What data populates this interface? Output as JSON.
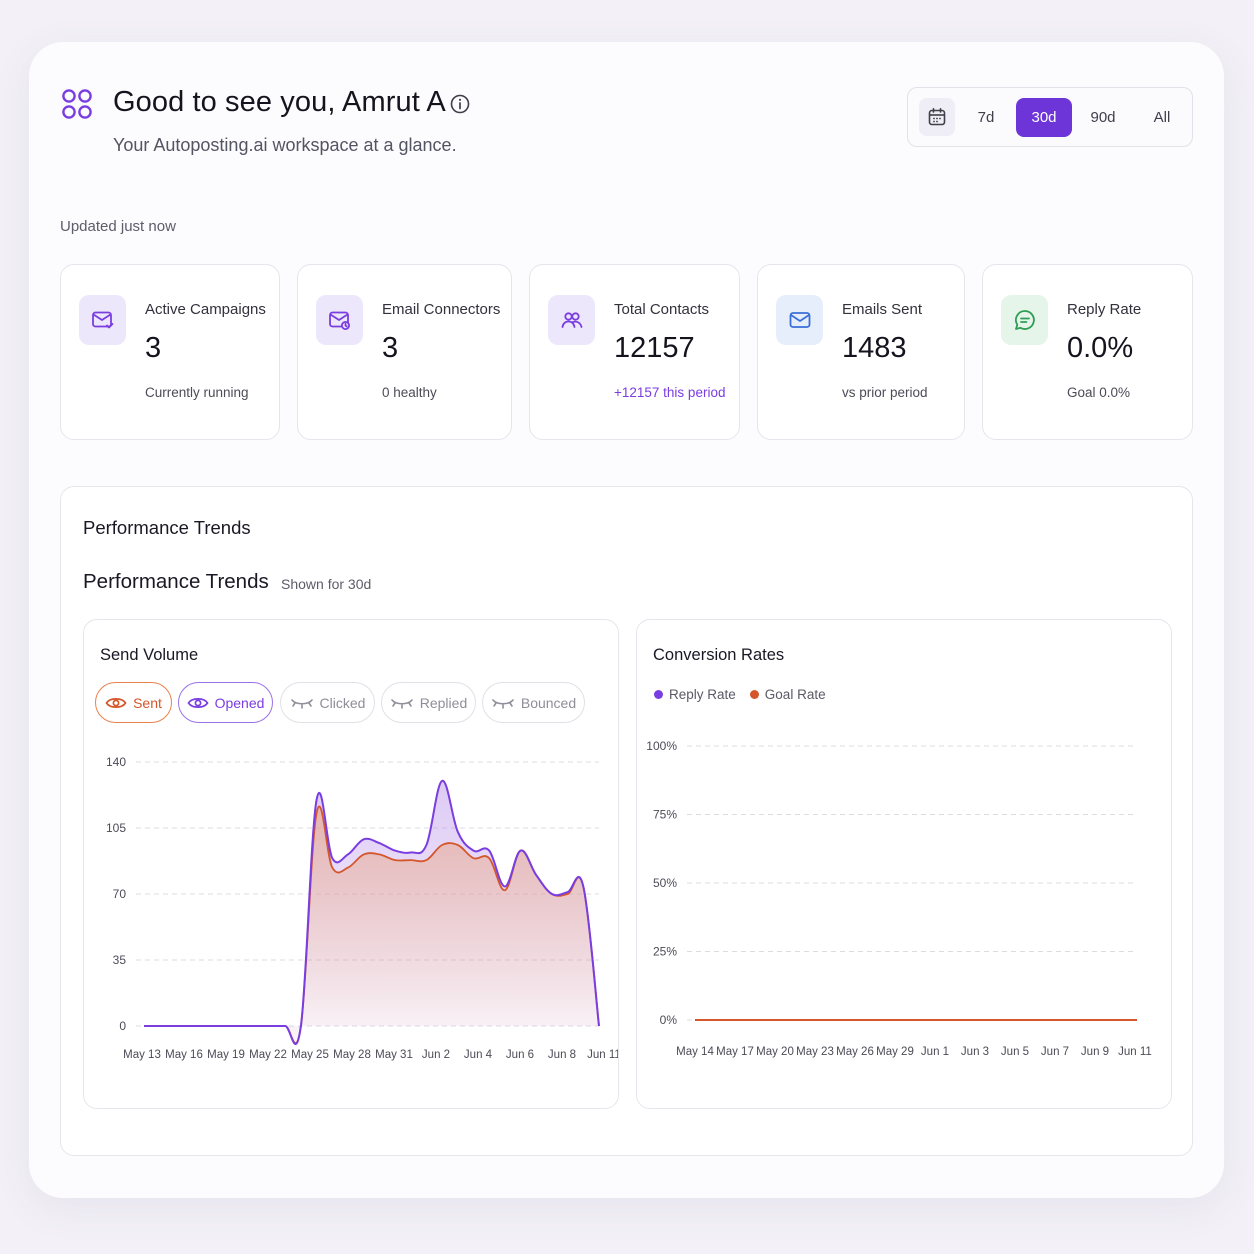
{
  "header": {
    "greeting": "Good to see you, Amrut A",
    "subtitle": "Your Autoposting.ai workspace at a glance.",
    "updated": "Updated just now"
  },
  "range": {
    "options": [
      "7d",
      "30d",
      "90d",
      "All"
    ],
    "selected": "30d"
  },
  "stats": [
    {
      "label": "Active Campaigns",
      "value": "3",
      "note": "Currently running",
      "icon": "mail-campaign-icon",
      "icon_bg": "#ede7fb",
      "icon_color": "#7a3de0"
    },
    {
      "label": "Email Connectors",
      "value": "3",
      "note": "0 healthy",
      "icon": "mail-connector-icon",
      "icon_bg": "#ede7fb",
      "icon_color": "#7a3de0"
    },
    {
      "label": "Total Contacts",
      "value": "12157",
      "note": "+12157 this period",
      "icon": "users-icon",
      "icon_bg": "#ede7fb",
      "icon_color": "#7a3de0"
    },
    {
      "label": "Emails Sent",
      "value": "1483",
      "note": "vs prior period",
      "icon": "mail-icon",
      "icon_bg": "#e6eefc",
      "icon_color": "#3b6fd8"
    },
    {
      "label": "Reply Rate",
      "value": "0.0%",
      "note": "Goal 0.0%",
      "icon": "chat-icon",
      "icon_bg": "#e6f5ea",
      "icon_color": "#2f9e55"
    }
  ],
  "trends": {
    "section_title": "Performance Trends",
    "title": "Performance Trends",
    "shown_for": "Shown for 30d"
  },
  "send_volume": {
    "title": "Send Volume",
    "filters": [
      {
        "label": "Sent",
        "state": "on",
        "icon": "eye-icon"
      },
      {
        "label": "Opened",
        "state": "on",
        "icon": "eye-icon"
      },
      {
        "label": "Clicked",
        "state": "off",
        "icon": "eye-closed-icon"
      },
      {
        "label": "Replied",
        "state": "off",
        "icon": "eye-closed-icon"
      },
      {
        "label": "Bounced",
        "state": "off",
        "icon": "eye-closed-icon"
      }
    ]
  },
  "conversion": {
    "title": "Conversion Rates",
    "legend": [
      {
        "label": "Reply Rate",
        "color": "#7a3de0"
      },
      {
        "label": "Goal Rate",
        "color": "#d4562a"
      }
    ]
  },
  "chart_data": [
    {
      "type": "area",
      "title": "Send Volume",
      "ylim": [
        0,
        140
      ],
      "y_ticks": [
        0,
        35,
        70,
        105,
        140
      ],
      "x_tick_labels": [
        "May 13",
        "May 16",
        "May 19",
        "May 22",
        "May 25",
        "May 28",
        "May 31",
        "Jun 2",
        "Jun 4",
        "Jun 6",
        "Jun 8",
        "Jun 11"
      ],
      "grid": true,
      "colors": {
        "Sent": "#d4562a",
        "Opened": "#7a3de0"
      },
      "series": [
        {
          "name": "Sent",
          "values": [
            0,
            0,
            0,
            0,
            0,
            0,
            0,
            0,
            0,
            0,
            0,
            113,
            84,
            84,
            91,
            91,
            88,
            88,
            88,
            96,
            96,
            89,
            89,
            72,
            93,
            80,
            70,
            70,
            74,
            0
          ]
        },
        {
          "name": "Opened",
          "values": [
            0,
            0,
            0,
            0,
            0,
            0,
            0,
            0,
            0,
            0,
            0,
            120,
            89,
            91,
            99,
            97,
            93,
            92,
            96,
            130,
            103,
            93,
            93,
            74,
            93,
            80,
            70,
            71,
            74,
            0
          ]
        }
      ]
    },
    {
      "type": "line",
      "title": "Conversion Rates",
      "ylim": [
        0,
        100
      ],
      "y_ticks": [
        "0%",
        "25%",
        "50%",
        "75%",
        "100%"
      ],
      "x_tick_labels": [
        "May 14",
        "May 17",
        "May 20",
        "May 23",
        "May 26",
        "May 29",
        "Jun 1",
        "Jun 3",
        "Jun 5",
        "Jun 7",
        "Jun 9",
        "Jun 11"
      ],
      "grid": true,
      "series": [
        {
          "name": "Reply Rate",
          "values": [
            0,
            0,
            0,
            0,
            0,
            0,
            0,
            0,
            0,
            0,
            0,
            0
          ]
        },
        {
          "name": "Goal Rate",
          "values": [
            0,
            0,
            0,
            0,
            0,
            0,
            0,
            0,
            0,
            0,
            0,
            0
          ]
        }
      ]
    }
  ]
}
